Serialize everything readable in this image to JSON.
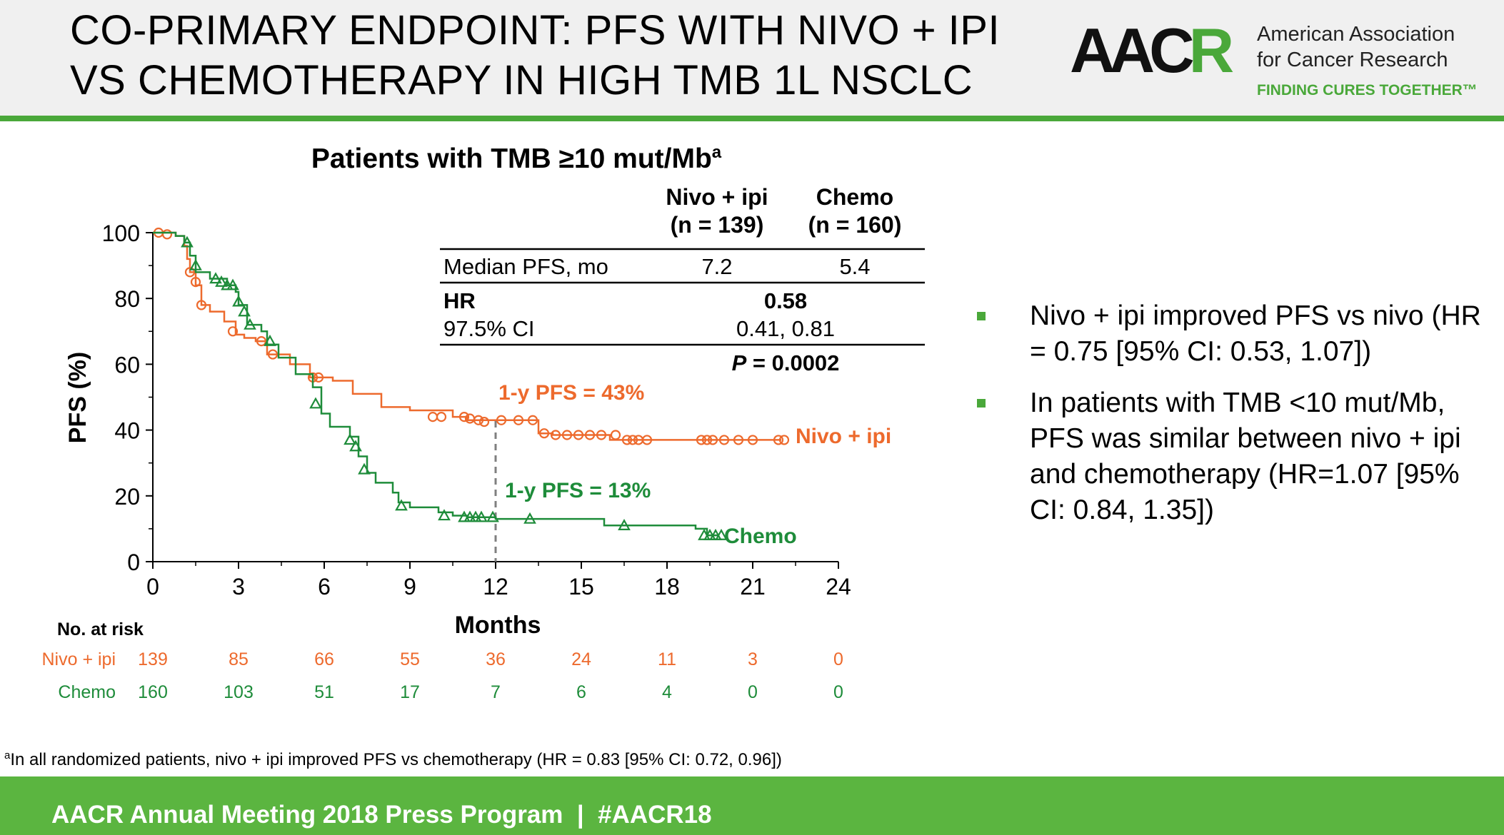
{
  "header": {
    "title_line1": "CO-PRIMARY ENDPOINT: PFS WITH NIVO + IPI",
    "title_line2": "VS CHEMOTHERAPY IN HIGH TMB 1L NSCLC"
  },
  "logo": {
    "mark_left": "AAC",
    "mark_right": "R",
    "name_line1": "American Association",
    "name_line2": "for Cancer Research",
    "tagline": "FINDING CURES TOGETHER",
    "tagline_suffix": "™"
  },
  "chart_data": {
    "type": "line",
    "title": "Patients with TMB ≥10 mut/Mb",
    "title_sup": "a",
    "xlabel": "Months",
    "ylabel": "PFS (%)",
    "xlim": [
      0,
      24
    ],
    "ylim": [
      0,
      100
    ],
    "xticks": [
      0,
      3,
      6,
      9,
      12,
      15,
      18,
      21,
      24
    ],
    "yticks": [
      0,
      20,
      40,
      60,
      80,
      100
    ],
    "grid": false,
    "colors": {
      "nivo_ipi": "#ed6a2d",
      "chemo": "#1e8c3a"
    },
    "series": [
      {
        "name": "Nivo + ipi",
        "marker": "circle",
        "points": [
          [
            0,
            100
          ],
          [
            0.8,
            99
          ],
          [
            1.1,
            96
          ],
          [
            1.2,
            92
          ],
          [
            1.3,
            88
          ],
          [
            1.5,
            84
          ],
          [
            1.7,
            78
          ],
          [
            2,
            76
          ],
          [
            2.5,
            73
          ],
          [
            2.9,
            69
          ],
          [
            3.2,
            68
          ],
          [
            3.6,
            67
          ],
          [
            4,
            63
          ],
          [
            4.8,
            60
          ],
          [
            5.5,
            56
          ],
          [
            6.3,
            55
          ],
          [
            7,
            51
          ],
          [
            8,
            47
          ],
          [
            9,
            46
          ],
          [
            10.5,
            44
          ],
          [
            11,
            43
          ],
          [
            12,
            43
          ],
          [
            13.5,
            39
          ],
          [
            14,
            38.5
          ],
          [
            16,
            37
          ],
          [
            22,
            37
          ]
        ],
        "censor": [
          [
            0.2,
            100
          ],
          [
            0.5,
            99.5
          ],
          [
            1.3,
            88
          ],
          [
            1.5,
            85
          ],
          [
            1.7,
            78
          ],
          [
            2.8,
            70
          ],
          [
            3.8,
            67
          ],
          [
            4.2,
            63
          ],
          [
            5.6,
            56
          ],
          [
            5.8,
            56
          ],
          [
            9.8,
            44
          ],
          [
            10.1,
            44
          ],
          [
            10.9,
            44
          ],
          [
            11.1,
            43.5
          ],
          [
            11.4,
            43
          ],
          [
            11.6,
            42.5
          ],
          [
            12.2,
            43
          ],
          [
            12.8,
            43
          ],
          [
            13.3,
            43
          ],
          [
            13.7,
            39
          ],
          [
            14.1,
            38.5
          ],
          [
            14.5,
            38.5
          ],
          [
            14.9,
            38.5
          ],
          [
            15.3,
            38.5
          ],
          [
            15.7,
            38.5
          ],
          [
            16.2,
            38.5
          ],
          [
            16.6,
            37
          ],
          [
            16.8,
            37
          ],
          [
            17,
            37
          ],
          [
            17.3,
            37
          ],
          [
            19.2,
            37
          ],
          [
            19.4,
            37
          ],
          [
            19.6,
            37
          ],
          [
            20,
            37
          ],
          [
            20.5,
            37
          ],
          [
            21,
            37
          ],
          [
            21.9,
            37
          ],
          [
            22.1,
            37
          ]
        ]
      },
      {
        "name": "Chemo",
        "marker": "triangle",
        "points": [
          [
            0,
            100
          ],
          [
            0.8,
            99
          ],
          [
            1.1,
            97
          ],
          [
            1.3,
            93
          ],
          [
            1.5,
            88
          ],
          [
            2,
            86
          ],
          [
            2.6,
            84
          ],
          [
            2.9,
            82
          ],
          [
            3,
            78
          ],
          [
            3.3,
            72
          ],
          [
            3.8,
            70
          ],
          [
            4,
            66
          ],
          [
            4.4,
            62
          ],
          [
            5,
            57
          ],
          [
            5.6,
            53
          ],
          [
            5.9,
            45
          ],
          [
            6.2,
            41
          ],
          [
            6.9,
            38
          ],
          [
            7.2,
            32
          ],
          [
            7.5,
            27
          ],
          [
            7.8,
            24
          ],
          [
            8.4,
            21
          ],
          [
            8.6,
            18
          ],
          [
            9,
            16.5
          ],
          [
            10,
            15
          ],
          [
            10.5,
            14
          ],
          [
            11,
            13.5
          ],
          [
            12,
            13
          ],
          [
            15.8,
            11
          ],
          [
            19,
            10
          ],
          [
            19.4,
            8
          ],
          [
            19.8,
            8
          ]
        ],
        "censor": [
          [
            1.2,
            97
          ],
          [
            1.5,
            90
          ],
          [
            2.2,
            86
          ],
          [
            2.4,
            85
          ],
          [
            2.6,
            84
          ],
          [
            2.8,
            84
          ],
          [
            3,
            79
          ],
          [
            3.2,
            76
          ],
          [
            3.4,
            72
          ],
          [
            4.1,
            67
          ],
          [
            5.7,
            48
          ],
          [
            6.9,
            37
          ],
          [
            7.1,
            35
          ],
          [
            7.4,
            28
          ],
          [
            8.7,
            17
          ],
          [
            10.2,
            14
          ],
          [
            10.9,
            13.5
          ],
          [
            11.1,
            13.5
          ],
          [
            11.3,
            13.5
          ],
          [
            11.5,
            13.5
          ],
          [
            11.9,
            13.5
          ],
          [
            13.2,
            13
          ],
          [
            16.5,
            11
          ],
          [
            19.3,
            8
          ],
          [
            19.5,
            8
          ],
          [
            19.7,
            8
          ],
          [
            19.9,
            8
          ]
        ]
      }
    ],
    "annotations": {
      "median_line_x": 12,
      "nivo_1y": "1-y PFS = 43%",
      "chemo_1y": "1-y PFS = 13%",
      "nivo_end_label": "Nivo + ipi",
      "chemo_end_label": "Chemo"
    },
    "stats_table": {
      "col1_line1": "Nivo + ipi",
      "col1_line2": "(n = 139)",
      "col2_line1": "Chemo",
      "col2_line2": "(n = 160)",
      "median_label": "Median PFS, mo",
      "median_nivo": "7.2",
      "median_chemo": "5.4",
      "hr_label": "HR",
      "hr_value": "0.58",
      "ci_label": "97.5% CI",
      "ci_value": "0.41, 0.81",
      "p_prefix": "P",
      "p_value": " = 0.0002"
    },
    "at_risk": {
      "label": "No. at risk",
      "rows": [
        {
          "name": "Nivo + ipi",
          "values": [
            "139",
            "85",
            "66",
            "55",
            "36",
            "24",
            "11",
            "3",
            "0"
          ]
        },
        {
          "name": "Chemo",
          "values": [
            "160",
            "103",
            "51",
            "17",
            "7",
            "6",
            "4",
            "0",
            "0"
          ]
        }
      ]
    }
  },
  "bullets": [
    "Nivo + ipi improved PFS vs nivo (HR = 0.75 [95% CI: 0.53, 1.07])",
    "In patients with TMB <10 mut/Mb, PFS was similar between nivo + ipi and chemotherapy (HR=1.07 [95% CI: 0.84, 1.35])"
  ],
  "footnote": {
    "sup": "a",
    "text": "In all randomized patients, nivo + ipi improved PFS vs chemotherapy (HR = 0.83 [95% CI: 0.72, 0.96])"
  },
  "footer": {
    "text": "AACR Annual Meeting 2018 Press Program  |  #AACR18"
  }
}
